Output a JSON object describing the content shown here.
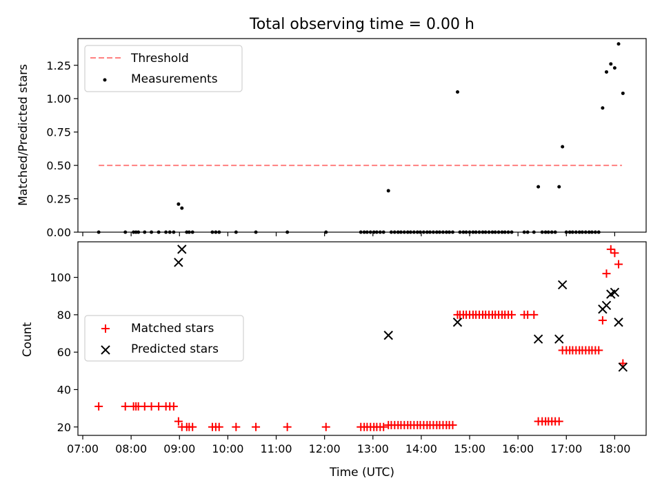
{
  "chart_data": {
    "title": "Total observing time = 0.00 h",
    "x_axis": {
      "label": "Time (UTC)",
      "unit": "hours_utc",
      "range": [
        6.9,
        18.65
      ],
      "ticks": [
        7,
        8,
        9,
        10,
        11,
        12,
        13,
        14,
        15,
        16,
        17,
        18
      ],
      "tick_labels": [
        "07:00",
        "08:00",
        "09:00",
        "10:00",
        "11:00",
        "12:00",
        "13:00",
        "14:00",
        "15:00",
        "16:00",
        "17:00",
        "18:00"
      ]
    },
    "panels": [
      {
        "id": "ratio",
        "type": "scatter",
        "ylabel": "Matched/Predicted stars",
        "ylim": [
          0,
          1.45
        ],
        "yticks": [
          0,
          0.25,
          0.5,
          0.75,
          1.0,
          1.25
        ],
        "ytick_labels": [
          "0.00",
          "0.25",
          "0.50",
          "0.75",
          "1.00",
          "1.25"
        ],
        "legend_position": "upper-left",
        "series": [
          {
            "name": "Threshold",
            "kind": "line",
            "style": "dashed",
            "color": "#ff7f7f",
            "x": [
              7.33,
              18.15
            ],
            "y": [
              0.5,
              0.5
            ]
          },
          {
            "name": "Measurements",
            "kind": "scatter",
            "marker": "dot",
            "color": "#000000",
            "x": [
              7.33,
              7.88,
              8.05,
              8.1,
              8.15,
              8.28,
              8.42,
              8.57,
              8.72,
              8.8,
              8.88,
              8.98,
              9.05,
              9.15,
              9.2,
              9.27,
              9.68,
              9.75,
              9.82,
              10.17,
              10.58,
              11.23,
              12.03,
              12.75,
              12.82,
              12.88,
              12.95,
              13.02,
              13.08,
              13.15,
              13.22,
              13.32,
              13.38,
              13.45,
              13.52,
              13.58,
              13.65,
              13.72,
              13.78,
              13.85,
              13.92,
              13.98,
              14.05,
              14.12,
              14.18,
              14.25,
              14.32,
              14.38,
              14.45,
              14.52,
              14.58,
              14.65,
              14.75,
              14.8,
              14.87,
              14.93,
              15.0,
              15.07,
              15.13,
              15.2,
              15.27,
              15.33,
              15.4,
              15.47,
              15.53,
              15.6,
              15.67,
              15.73,
              15.8,
              15.87,
              16.13,
              16.2,
              16.33,
              16.42,
              16.5,
              16.57,
              16.63,
              16.7,
              16.77,
              16.85,
              16.92,
              17.0,
              17.07,
              17.13,
              17.2,
              17.27,
              17.33,
              17.4,
              17.47,
              17.53,
              17.6,
              17.67,
              17.75,
              17.83,
              17.92,
              18.0,
              18.08,
              18.17
            ],
            "y": [
              0,
              0,
              0,
              0,
              0,
              0,
              0,
              0,
              0,
              0,
              0,
              0.21,
              0.18,
              0,
              0,
              0,
              0,
              0,
              0,
              0,
              0,
              0,
              0,
              0,
              0,
              0,
              0,
              0,
              0,
              0,
              0,
              0.31,
              0,
              0,
              0,
              0,
              0,
              0,
              0,
              0,
              0,
              0,
              0,
              0,
              0,
              0,
              0,
              0,
              0,
              0,
              0,
              0,
              1.05,
              0,
              0,
              0,
              0,
              0,
              0,
              0,
              0,
              0,
              0,
              0,
              0,
              0,
              0,
              0,
              0,
              0,
              0,
              0,
              0,
              0.34,
              0,
              0,
              0,
              0,
              0,
              0.34,
              0.64,
              0,
              0,
              0,
              0,
              0,
              0,
              0,
              0,
              0,
              0,
              0,
              0.93,
              1.2,
              1.26,
              1.23,
              1.41,
              1.04
            ]
          }
        ]
      },
      {
        "id": "counts",
        "type": "scatter",
        "ylabel": "Count",
        "ylim": [
          15.5,
          119
        ],
        "yticks": [
          20,
          40,
          60,
          80,
          100
        ],
        "ytick_labels": [
          "20",
          "40",
          "60",
          "80",
          "100"
        ],
        "legend_position": "center-left",
        "series": [
          {
            "name": "Matched stars",
            "kind": "scatter",
            "marker": "plus",
            "color": "#ff0000",
            "x": [
              7.33,
              7.88,
              8.05,
              8.1,
              8.15,
              8.28,
              8.42,
              8.57,
              8.72,
              8.8,
              8.88,
              8.98,
              9.05,
              9.15,
              9.2,
              9.27,
              9.68,
              9.75,
              9.82,
              10.17,
              10.58,
              11.23,
              12.03,
              12.75,
              12.82,
              12.88,
              12.95,
              13.02,
              13.08,
              13.15,
              13.22,
              13.32,
              13.38,
              13.45,
              13.52,
              13.58,
              13.65,
              13.72,
              13.78,
              13.85,
              13.92,
              13.98,
              14.05,
              14.12,
              14.18,
              14.25,
              14.32,
              14.38,
              14.45,
              14.52,
              14.58,
              14.65,
              14.75,
              14.8,
              14.87,
              14.93,
              15.0,
              15.07,
              15.13,
              15.2,
              15.27,
              15.33,
              15.4,
              15.47,
              15.53,
              15.6,
              15.67,
              15.73,
              15.8,
              15.87,
              16.13,
              16.2,
              16.33,
              16.42,
              16.5,
              16.57,
              16.63,
              16.7,
              16.77,
              16.85,
              16.92,
              17.0,
              17.07,
              17.13,
              17.2,
              17.27,
              17.33,
              17.4,
              17.47,
              17.53,
              17.6,
              17.67,
              17.75,
              17.83,
              17.92,
              18.0,
              18.08,
              18.17
            ],
            "y": [
              31,
              31,
              31,
              31,
              31,
              31,
              31,
              31,
              31,
              31,
              31,
              23,
              20,
              20,
              20,
              20,
              20,
              20,
              20,
              20,
              20,
              20,
              20,
              20,
              20,
              20,
              20,
              20,
              20,
              20,
              20,
              21,
              21,
              21,
              21,
              21,
              21,
              21,
              21,
              21,
              21,
              21,
              21,
              21,
              21,
              21,
              21,
              21,
              21,
              21,
              21,
              21,
              80,
              80,
              80,
              80,
              80,
              80,
              80,
              80,
              80,
              80,
              80,
              80,
              80,
              80,
              80,
              80,
              80,
              80,
              80,
              80,
              80,
              23,
              23,
              23,
              23,
              23,
              23,
              23,
              61,
              61,
              61,
              61,
              61,
              61,
              61,
              61,
              61,
              61,
              61,
              61,
              77,
              102,
              115,
              113,
              107,
              54
            ]
          },
          {
            "name": "Predicted stars",
            "kind": "scatter",
            "marker": "cross",
            "color": "#000000",
            "x": [
              8.98,
              9.05,
              13.32,
              14.75,
              16.42,
              16.85,
              16.92,
              17.75,
              17.83,
              17.92,
              18.0,
              18.08,
              18.17
            ],
            "y": [
              108,
              115,
              69,
              76,
              67,
              67,
              96,
              83,
              85,
              91,
              92,
              76,
              52
            ]
          }
        ]
      }
    ]
  }
}
